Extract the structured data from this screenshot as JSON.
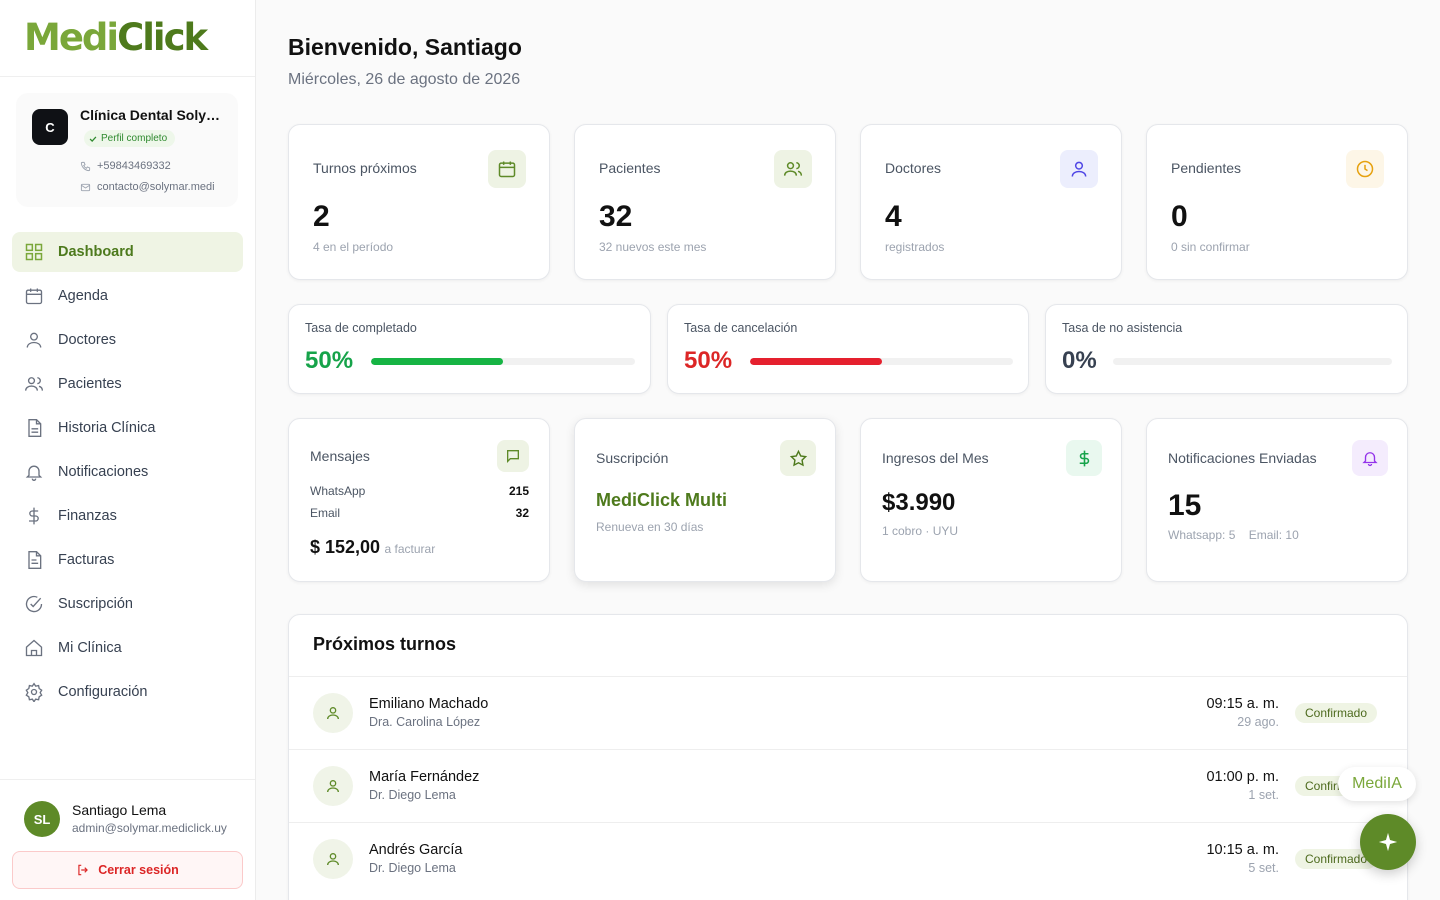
{
  "brand": {
    "name_part1": "Medi",
    "name_part2": "Click"
  },
  "clinic": {
    "initial": "C",
    "name": "Clínica Dental Solymar",
    "profile_status": "Perfil completo",
    "phone": "+59843469332",
    "email": "contacto@solymar.medi"
  },
  "nav": {
    "items": [
      {
        "label": "Dashboard",
        "icon": "grid-icon",
        "active": true
      },
      {
        "label": "Agenda",
        "icon": "calendar-icon"
      },
      {
        "label": "Doctores",
        "icon": "user-icon"
      },
      {
        "label": "Pacientes",
        "icon": "users-icon"
      },
      {
        "label": "Historia Clínica",
        "icon": "document-icon"
      },
      {
        "label": "Notificaciones",
        "icon": "bell-icon"
      },
      {
        "label": "Finanzas",
        "icon": "dollar-icon"
      },
      {
        "label": "Facturas",
        "icon": "invoice-icon"
      },
      {
        "label": "Suscripción",
        "icon": "check-circle-icon"
      },
      {
        "label": "Mi Clínica",
        "icon": "home-icon"
      },
      {
        "label": "Configuración",
        "icon": "gear-icon"
      }
    ]
  },
  "user": {
    "initials": "SL",
    "name": "Santiago Lema",
    "email": "admin@solymar.mediclick.uy",
    "logout_label": "Cerrar sesión"
  },
  "header": {
    "title": "Bienvenido, Santiago",
    "date": "Miércoles, 26 de agosto de 2026"
  },
  "stats": {
    "turnos": {
      "label": "Turnos próximos",
      "value": "2",
      "sub": "4 en el período"
    },
    "pacientes": {
      "label": "Pacientes",
      "value": "32",
      "sub": "32 nuevos este mes"
    },
    "doctores": {
      "label": "Doctores",
      "value": "4",
      "sub": "registrados"
    },
    "pendientes": {
      "label": "Pendientes",
      "value": "0",
      "sub": "0 sin confirmar"
    }
  },
  "rates": {
    "completado": {
      "label": "Tasa de completado",
      "value": "50%",
      "fraction": 0.5,
      "color": "#16b444"
    },
    "cancelacion": {
      "label": "Tasa de cancelación",
      "value": "50%",
      "fraction": 0.5,
      "color": "#e5202e"
    },
    "no_asistencia": {
      "label": "Tasa de no asistencia",
      "value": "0%",
      "fraction": 0,
      "color": "#374151"
    }
  },
  "mensajes": {
    "label": "Mensajes",
    "whatsapp_label": "WhatsApp",
    "whatsapp_value": "215",
    "email_label": "Email",
    "email_value": "32",
    "amount": "$ 152,00",
    "amount_note": "a facturar"
  },
  "suscripcion": {
    "label": "Suscripción",
    "plan": "MediClick Multi",
    "renew": "Renueva en 30 días"
  },
  "ingresos": {
    "label": "Ingresos del Mes",
    "value": "$3.990",
    "sub": "1 cobro · UYU"
  },
  "notificaciones": {
    "label": "Notificaciones Enviadas",
    "value": "15",
    "whatsapp": "Whatsapp: 5",
    "email": "Email: 10"
  },
  "appointments": {
    "title": "Próximos turnos",
    "rows": [
      {
        "patient": "Emiliano Machado",
        "doctor": "Dra. Carolina López",
        "time": "09:15 a. m.",
        "date": "29 ago.",
        "status": "Confirmado"
      },
      {
        "patient": "María Fernández",
        "doctor": "Dr. Diego Lema",
        "time": "01:00 p. m.",
        "date": "1 set.",
        "status": "Confirmado"
      },
      {
        "patient": "Andrés García",
        "doctor": "Dr. Diego Lema",
        "time": "10:15 a. m.",
        "date": "5 set.",
        "status": "Confirmado"
      }
    ]
  },
  "assistant": {
    "label": "MediIA",
    "icon": "sparkle-icon"
  },
  "colors": {
    "brand_light": "#7aa73a",
    "brand_dark": "#4e7a1c",
    "accent": "#5e8a28"
  }
}
